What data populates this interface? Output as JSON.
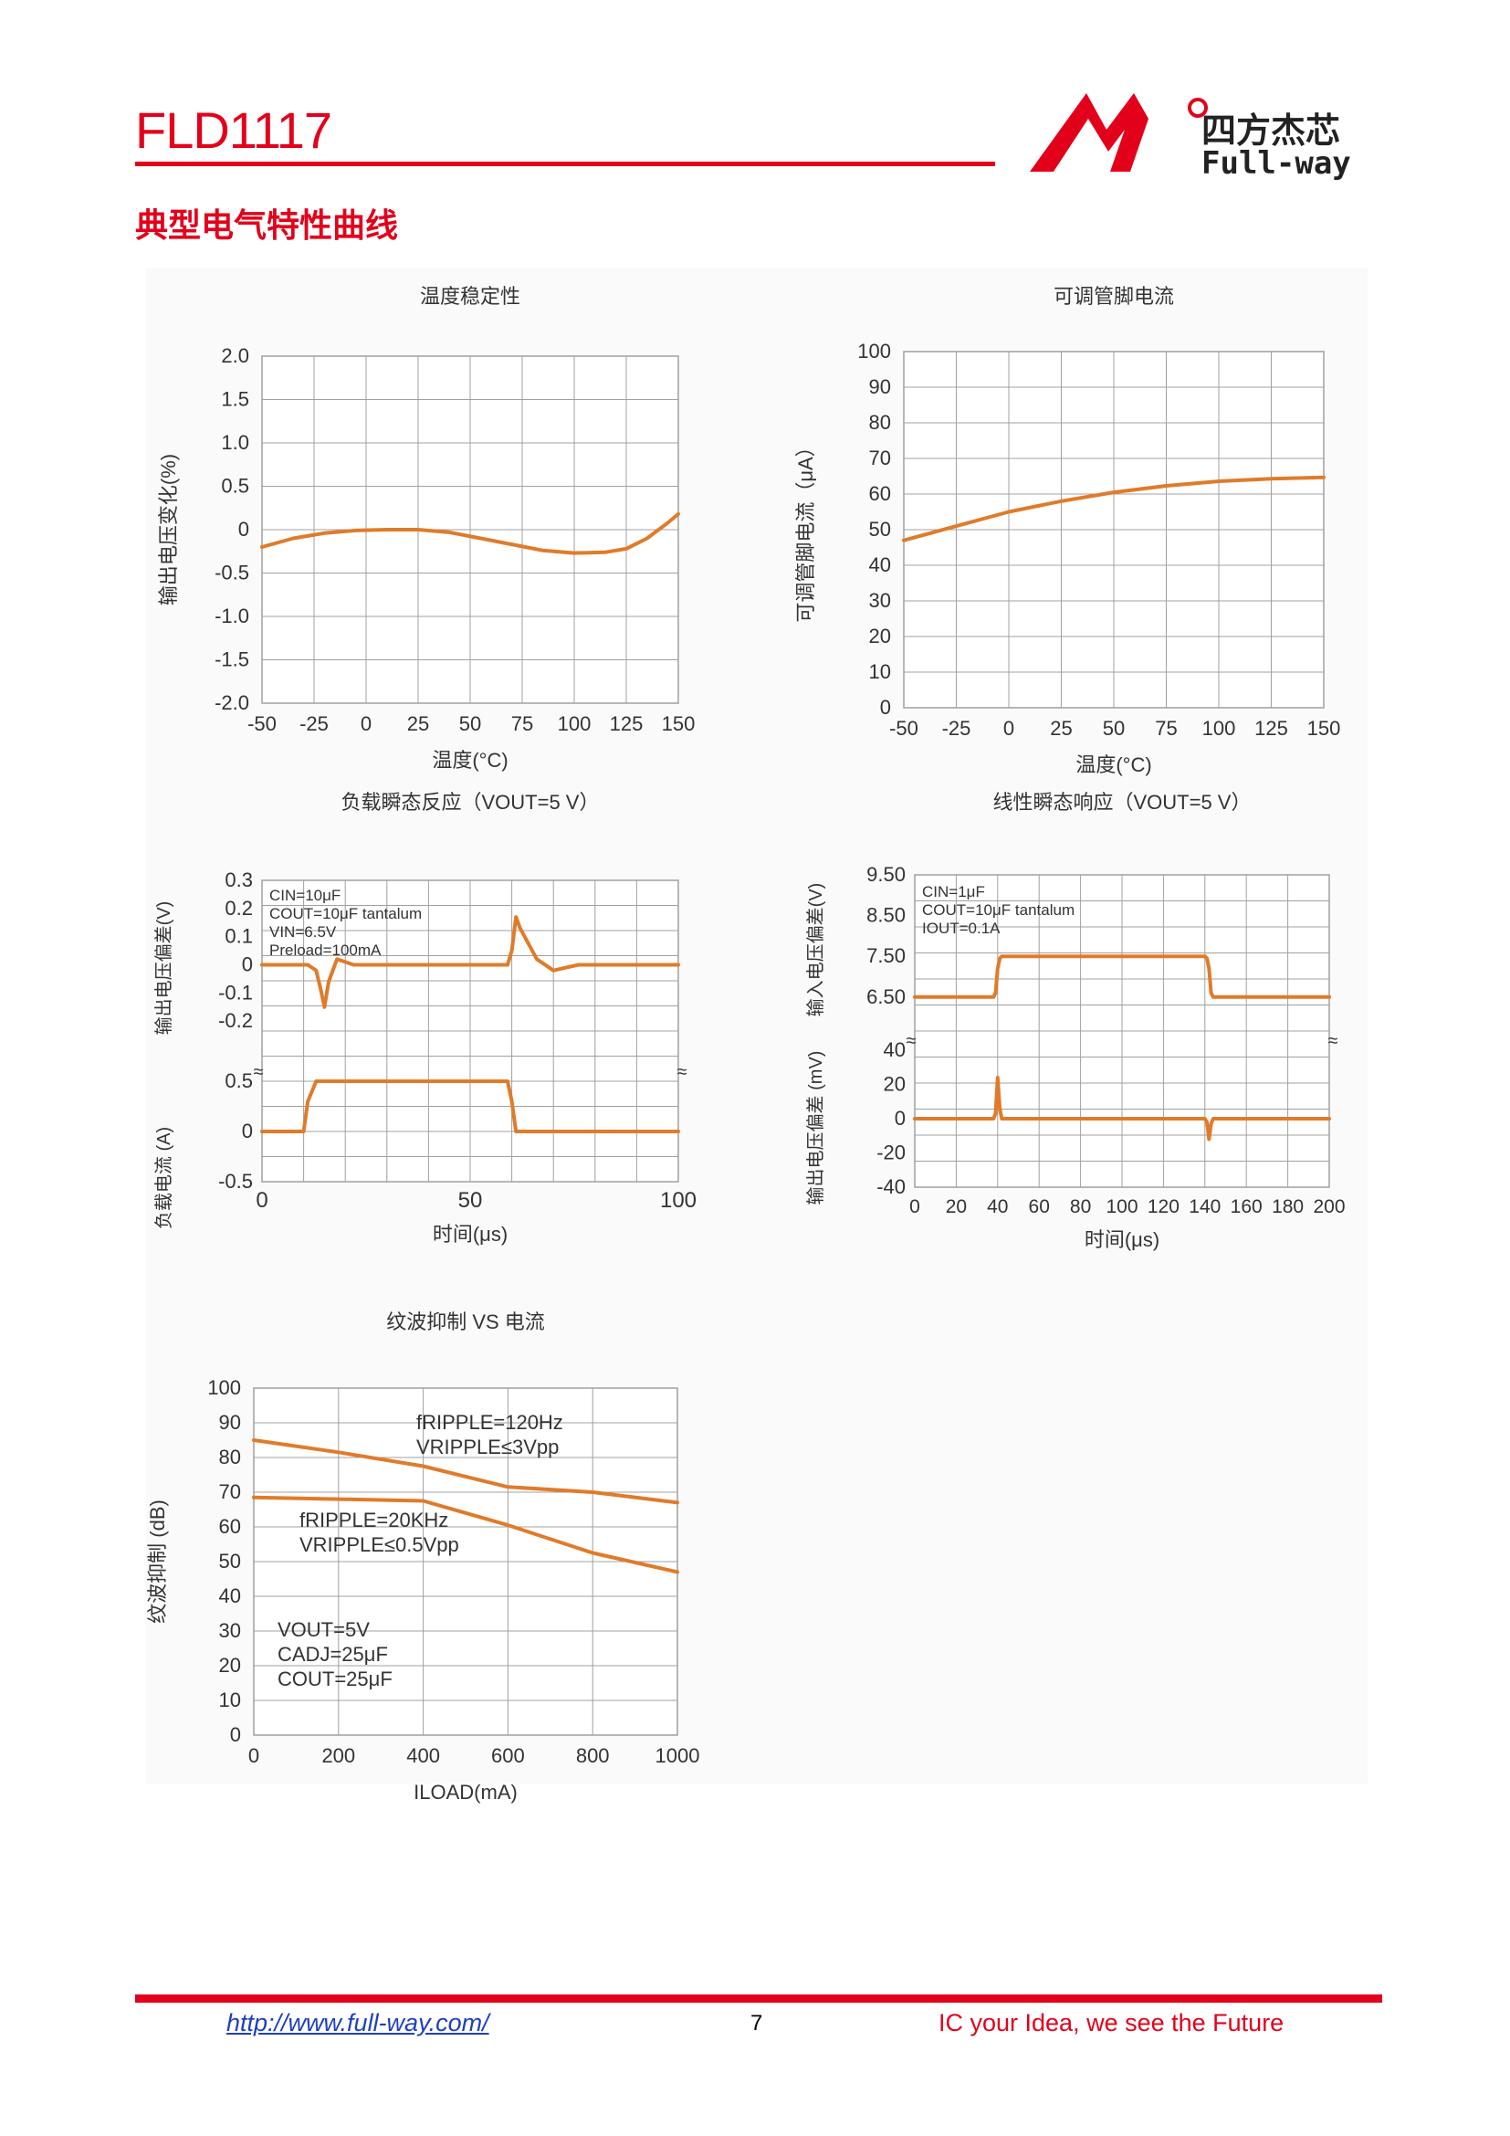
{
  "header": {
    "doc_title": "FLD1117",
    "logo_cn": "四方杰芯",
    "logo_en": "Full-way",
    "section_title": "典型电气特性曲线"
  },
  "colors": {
    "accent": "#e3001b",
    "curve": "#e07b2a",
    "grid": "#a0a0a0",
    "link": "#1f3fbf"
  },
  "footer": {
    "link": "http://www.full-way.com/",
    "page": "7",
    "slogan": "IC your Idea, we see the Future"
  },
  "chart_data": [
    {
      "id": "temp_stability",
      "type": "line",
      "title": "温度稳定性",
      "xlabel": "温度(°C)",
      "ylabel": "输出电压变化(%)",
      "xlim": [
        -50,
        150
      ],
      "ylim": [
        -2.0,
        2.0
      ],
      "xticks": [
        -50,
        -25,
        0,
        25,
        50,
        75,
        100,
        125,
        150
      ],
      "xtick_labels": [
        "-50",
        "-25",
        "0",
        "25",
        "50",
        "75",
        "100",
        "125",
        "150"
      ],
      "yticks": [
        2.0,
        1.5,
        1.0,
        0.5,
        0,
        -0.5,
        -1.0,
        -1.5,
        -2.0
      ],
      "ytick_labels": [
        "2.0",
        "1.5",
        "1.0",
        "0.5",
        "0",
        "-0.5",
        "-1.0",
        "-1.5",
        "-2.0"
      ],
      "grid": true,
      "series": [
        {
          "x": [
            -50,
            -35,
            -20,
            -5,
            10,
            25,
            40,
            55,
            70,
            85,
            100,
            115,
            125,
            135,
            145,
            150
          ],
          "y": [
            -0.2,
            -0.1,
            -0.04,
            -0.01,
            0.0,
            0.0,
            -0.03,
            -0.1,
            -0.17,
            -0.24,
            -0.27,
            -0.26,
            -0.22,
            -0.1,
            0.08,
            0.18
          ]
        }
      ]
    },
    {
      "id": "adj_current",
      "type": "line",
      "title": "可调管脚电流",
      "xlabel": "温度(°C)",
      "ylabel": "可调管脚电流（μA）",
      "xlim": [
        -50,
        150
      ],
      "ylim": [
        0,
        100
      ],
      "xticks": [
        -50,
        -25,
        0,
        25,
        50,
        75,
        100,
        125,
        150
      ],
      "xtick_labels": [
        "-50",
        "-25",
        "0",
        "25",
        "50",
        "75",
        "100",
        "125",
        "150"
      ],
      "yticks": [
        100,
        90,
        80,
        70,
        60,
        50,
        40,
        30,
        20,
        10,
        0
      ],
      "ytick_labels": [
        "100",
        "90",
        "80",
        "70",
        "60",
        "50",
        "40",
        "30",
        "20",
        "10",
        "0"
      ],
      "grid": true,
      "series": [
        {
          "x": [
            -50,
            -25,
            0,
            25,
            50,
            75,
            100,
            125,
            150
          ],
          "y": [
            47,
            51,
            55,
            58,
            60.5,
            62.3,
            63.6,
            64.3,
            64.7
          ]
        }
      ]
    },
    {
      "id": "load_transient",
      "type": "line",
      "title": "负载瞬态反应（VOUT=5 V）",
      "xlabel": "时间(μs)",
      "ylabel_top": "输出电压偏差(V)",
      "ylabel_bottom": "负载电流 (A)",
      "xlim": [
        0,
        100
      ],
      "xticks": [
        0,
        50,
        100
      ],
      "xtick_labels": [
        "0",
        "50",
        "100"
      ],
      "top_yticks": [
        0.3,
        0.2,
        0.1,
        0,
        -0.1,
        -0.2
      ],
      "top_ytick_labels": [
        "0.3",
        "0.2",
        "0.1",
        "0",
        "-0.1",
        "-0.2"
      ],
      "bottom_yticks": [
        0.5,
        0,
        -0.5
      ],
      "bottom_ytick_labels": [
        "0.5",
        "0",
        "-0.5"
      ],
      "annotation": [
        "CIN=10μF",
        "COUT=10μF tantalum",
        "VIN=6.5V",
        "Preload=100mA"
      ],
      "grid": true,
      "series": [
        {
          "name": "output_voltage_deviation",
          "x": [
            0,
            10,
            11,
            13,
            14,
            15,
            16,
            18,
            20,
            22,
            28,
            59,
            60,
            61,
            62,
            66,
            70,
            73,
            76,
            100
          ],
          "y": [
            0,
            0,
            0,
            -0.02,
            -0.08,
            -0.15,
            -0.06,
            0.02,
            0.01,
            0,
            0,
            0,
            0.05,
            0.17,
            0.13,
            0.02,
            -0.02,
            -0.01,
            0,
            0
          ]
        },
        {
          "name": "load_current",
          "x": [
            0,
            10,
            11,
            13,
            59,
            60,
            61,
            100
          ],
          "y": [
            0,
            0,
            0.3,
            0.5,
            0.5,
            0.3,
            0,
            0
          ]
        }
      ]
    },
    {
      "id": "line_transient",
      "type": "line",
      "title": "线性瞬态响应（VOUT=5 V）",
      "xlabel": "时间(μs)",
      "ylabel_top": "输入电压偏差(V)",
      "ylabel_bottom": "输出电压偏差 (mV)",
      "xlim": [
        0,
        200
      ],
      "xticks": [
        0,
        20,
        40,
        60,
        80,
        100,
        120,
        140,
        160,
        180,
        200
      ],
      "xtick_labels": [
        "0",
        "20",
        "40",
        "60",
        "80",
        "100",
        "120",
        "140",
        "160",
        "180",
        "200"
      ],
      "top_yticks": [
        9.5,
        8.5,
        7.5,
        6.5
      ],
      "top_ytick_labels": [
        "9.50",
        "8.50",
        "7.50",
        "6.50"
      ],
      "bottom_yticks": [
        40,
        20,
        0,
        -20,
        -40
      ],
      "bottom_ytick_labels": [
        "40",
        "20",
        "0",
        "-20",
        "-40"
      ],
      "annotation": [
        "CIN=1μF",
        "COUT=10μF tantalum",
        "IOUT=0.1A"
      ],
      "grid": true,
      "series": [
        {
          "name": "input_voltage_deviation",
          "x": [
            0,
            38,
            39,
            40,
            41,
            42,
            140,
            141,
            142,
            143,
            144,
            200
          ],
          "y": [
            6.5,
            6.5,
            6.6,
            7.2,
            7.45,
            7.5,
            7.5,
            7.45,
            7.2,
            6.6,
            6.5,
            6.5
          ]
        },
        {
          "name": "output_voltage_deviation",
          "x": [
            0,
            38,
            39,
            40,
            41,
            42,
            43,
            140,
            141,
            142,
            143,
            144,
            200
          ],
          "y": [
            0,
            0,
            3,
            24,
            6,
            0,
            0,
            0,
            -2,
            -12,
            -3,
            0,
            0
          ]
        }
      ]
    },
    {
      "id": "ripple_rejection",
      "type": "line",
      "title": "纹波抑制 VS 电流",
      "xlabel": "ILOAD(mA)",
      "ylabel": "纹波抑制 (dB)",
      "xlim": [
        0,
        1000
      ],
      "ylim": [
        0,
        100
      ],
      "xticks": [
        0,
        200,
        400,
        600,
        800,
        1000
      ],
      "xtick_labels": [
        "0",
        "200",
        "400",
        "600",
        "800",
        "1000"
      ],
      "yticks": [
        100,
        90,
        80,
        70,
        60,
        50,
        40,
        30,
        20,
        10,
        0
      ],
      "ytick_labels": [
        "100",
        "90",
        "80",
        "70",
        "60",
        "50",
        "40",
        "30",
        "20",
        "10",
        "0"
      ],
      "grid": true,
      "series": [
        {
          "name": "fRIPPLE=120Hz, VRIPPLE≤3Vpp",
          "x": [
            0,
            200,
            400,
            600,
            800,
            1000
          ],
          "y": [
            85,
            81.5,
            77.5,
            71.5,
            70,
            67
          ]
        },
        {
          "name": "fRIPPLE=20KHz, VRIPPLE≤0.5Vpp",
          "x": [
            0,
            200,
            400,
            600,
            800,
            1000
          ],
          "y": [
            68.5,
            68,
            67.5,
            60.5,
            52.5,
            47
          ]
        }
      ],
      "series_labels": [
        [
          "fRIPPLE=120Hz",
          "VRIPPLE≤3Vpp"
        ],
        [
          "fRIPPLE=20KHz",
          "VRIPPLE≤0.5Vpp"
        ]
      ],
      "annotation": [
        "VOUT=5V",
        "CADJ=25μF",
        "COUT=25μF"
      ]
    }
  ]
}
